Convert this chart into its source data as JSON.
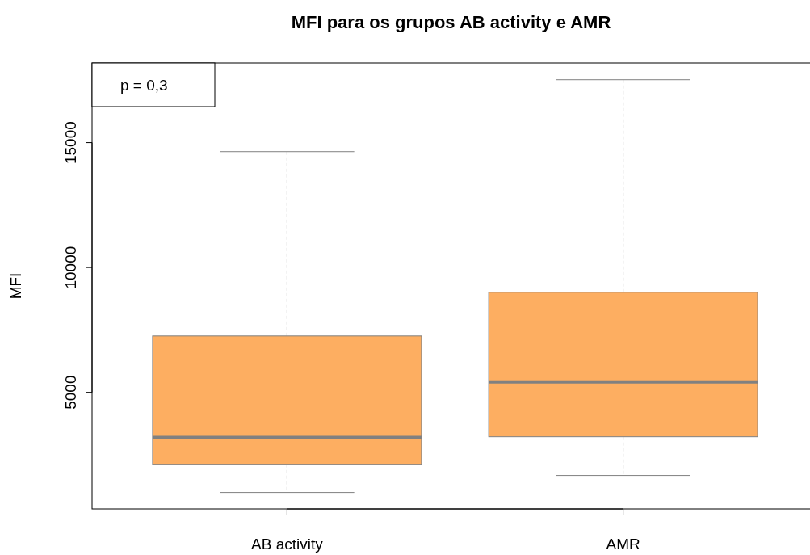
{
  "chart_data": {
    "type": "box",
    "title": "MFI para os grupos AB activity e AMR",
    "ylabel": "MFI",
    "categories": [
      "AB activity",
      "AMR"
    ],
    "boxes": [
      {
        "low": 990,
        "q1": 2120,
        "median": 3190,
        "q3": 7260,
        "high": 14640
      },
      {
        "low": 1670,
        "q1": 3220,
        "median": 5420,
        "q3": 9010,
        "high": 17520
      }
    ],
    "color": "#fdae61",
    "ylim": [
      330,
      18190
    ],
    "yticks": [
      5000,
      10000,
      15000
    ],
    "annotations": [
      "p = 0,3"
    ],
    "grid": false
  }
}
